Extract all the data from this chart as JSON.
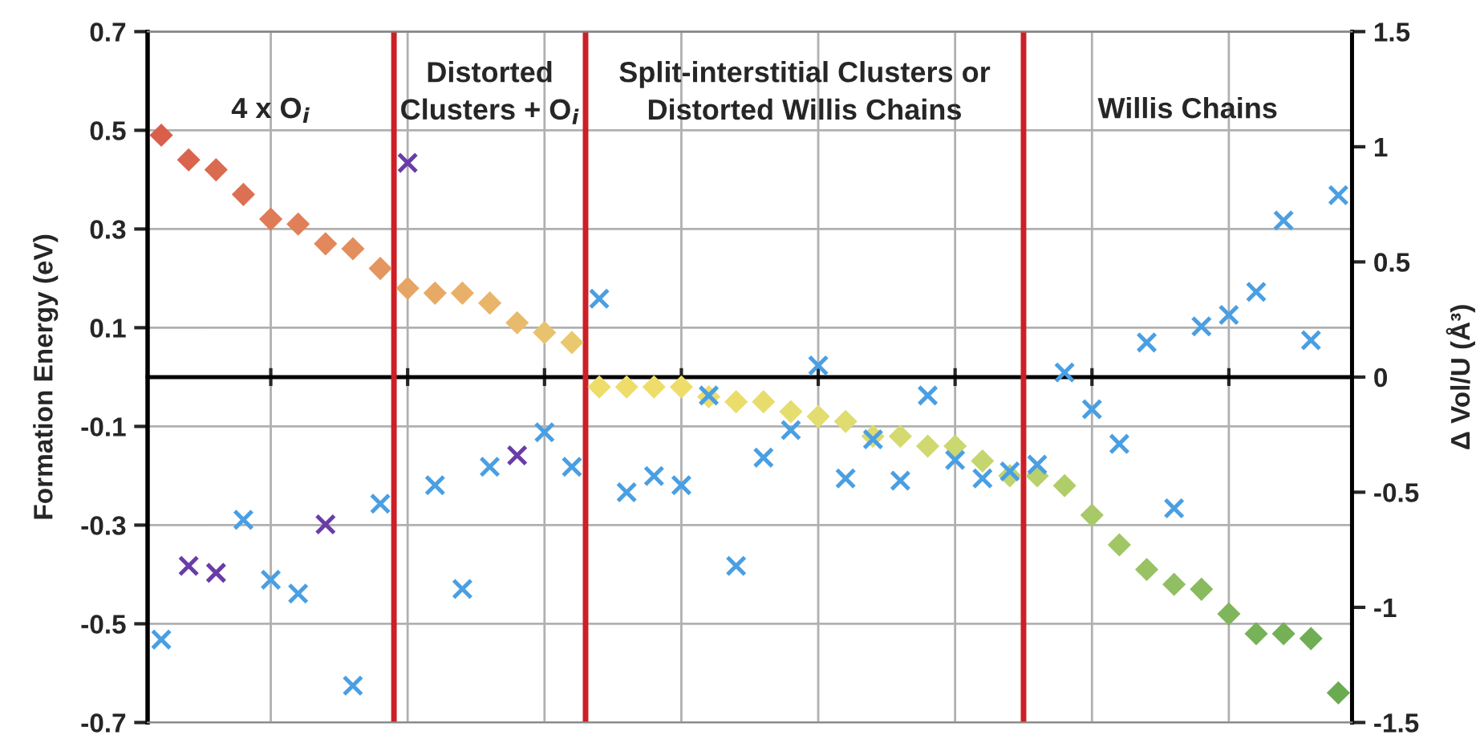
{
  "chart_data": {
    "type": "scatter",
    "ylabel": "Formation Energy (eV)",
    "y2label": "Δ Vol/U (Å³)",
    "categories": [
      null,
      null,
      null,
      null,
      null,
      null,
      null,
      null,
      null,
      null,
      null,
      null,
      null,
      null,
      null,
      null,
      null,
      null,
      null,
      null,
      null,
      null,
      null,
      null,
      null,
      null,
      null,
      null,
      null,
      null,
      null,
      null,
      null,
      null,
      null,
      null,
      null,
      null,
      null,
      null,
      null,
      null,
      null,
      null
    ],
    "ylim": [
      -0.7,
      0.7
    ],
    "yticks": [
      -0.7,
      -0.5,
      -0.3,
      -0.1,
      0.1,
      0.3,
      0.5,
      0.7
    ],
    "y2lim": [
      -1.5,
      1.5
    ],
    "y2ticks": [
      -1.5,
      -1,
      -0.5,
      0,
      0.5,
      1,
      1.5
    ],
    "grid": true,
    "legend": false,
    "series": [
      {
        "marker": "diamond",
        "values": [
          0.49,
          0.44,
          0.42,
          0.37,
          0.32,
          0.31,
          0.27,
          0.26,
          0.22,
          0.18,
          0.17,
          0.17,
          0.15,
          0.11,
          0.09,
          0.07,
          -0.02,
          -0.02,
          -0.02,
          -0.02,
          -0.04,
          -0.05,
          -0.05,
          -0.07,
          -0.08,
          -0.09,
          -0.12,
          -0.12,
          -0.14,
          -0.14,
          -0.17,
          -0.2,
          -0.2,
          -0.22,
          -0.28,
          -0.34,
          -0.39,
          -0.42,
          -0.43,
          -0.48,
          -0.52,
          -0.52,
          -0.53,
          -0.64
        ],
        "colors": [
          "#d95f4b",
          "#d9654e",
          "#da6a50",
          "#dc7052",
          "#df7b56",
          "#e08058",
          "#e2885b",
          "#e38e5d",
          "#e5955f",
          "#e6a564",
          "#e7aa66",
          "#e8b068",
          "#e8b56a",
          "#e8bb6c",
          "#e9c26d",
          "#eac96e",
          "#eedd6a",
          "#eedd6a",
          "#eedd6a",
          "#eedd6a",
          "#ecdd6c",
          "#eadd6c",
          "#e8dd6c",
          "#e5dd6e",
          "#e2dd6e",
          "#dfdc70",
          "#dadb70",
          "#d5da70",
          "#d0d970",
          "#cbd870",
          "#c5d670",
          "#bfd46e",
          "#b8d16c",
          "#b0cd6a",
          "#a8c968",
          "#a0c666",
          "#98c264",
          "#90be62",
          "#88ba5e",
          "#80b65b",
          "#78b258",
          "#74b056",
          "#70ae55",
          "#6aab52"
        ]
      },
      {
        "marker": "cross",
        "axis": "y2",
        "values": [
          -1.14,
          -0.82,
          -0.85,
          -0.62,
          -0.88,
          -0.94,
          -0.64,
          -1.34,
          -0.55,
          0.93,
          -0.47,
          -0.92,
          -0.39,
          -0.34,
          -0.24,
          -0.39,
          0.34,
          -0.5,
          -0.43,
          -0.47,
          -0.08,
          -0.82,
          -0.35,
          -0.23,
          0.05,
          -0.44,
          -0.27,
          -0.45,
          -0.08,
          -0.36,
          -0.44,
          -0.41,
          -0.38,
          0.02,
          -0.14,
          -0.29,
          0.15,
          -0.57,
          0.22,
          0.27,
          0.37,
          0.68,
          0.16,
          0.79
        ],
        "colors": [
          "#4a9fe3",
          "#6a3ca8",
          "#6a3ca8",
          "#4a9fe3",
          "#4a9fe3",
          "#4a9fe3",
          "#6a3ca8",
          "#4a9fe3",
          "#4a9fe3",
          "#6a3ca8",
          "#4a9fe3",
          "#4a9fe3",
          "#4a9fe3",
          "#6a3ca8",
          "#4a9fe3",
          "#4a9fe3",
          "#4a9fe3",
          "#4a9fe3",
          "#4a9fe3",
          "#4a9fe3",
          "#4a9fe3",
          "#4a9fe3",
          "#4a9fe3",
          "#4a9fe3",
          "#4a9fe3",
          "#4a9fe3",
          "#4a9fe3",
          "#4a9fe3",
          "#4a9fe3",
          "#4a9fe3",
          "#4a9fe3",
          "#4a9fe3",
          "#4a9fe3",
          "#4a9fe3",
          "#4a9fe3",
          "#4a9fe3",
          "#4a9fe3",
          "#4a9fe3",
          "#4a9fe3",
          "#4a9fe3",
          "#4a9fe3",
          "#4a9fe3",
          "#4a9fe3",
          "#4a9fe3"
        ]
      }
    ],
    "annotations": [
      "4 x O$_{i}$",
      "Distorted\nClusters + O$_{i}$",
      "Split-interstitial Clusters or\nDistorted Willis Chains",
      "Willis Chains"
    ]
  }
}
